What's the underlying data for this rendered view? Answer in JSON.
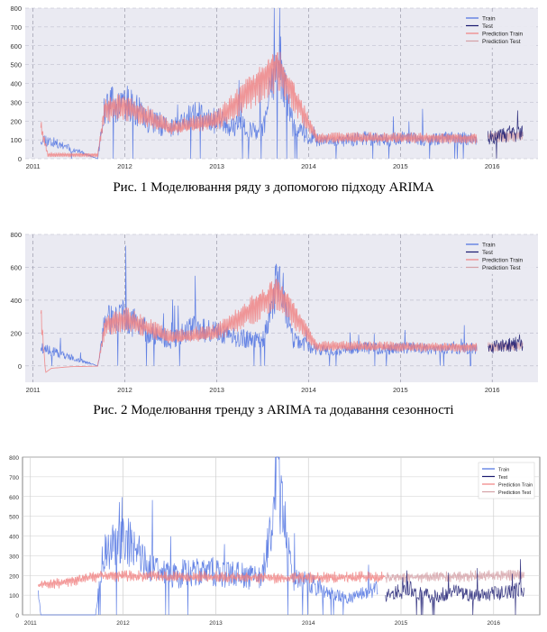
{
  "captions": [
    "Рис. 1 Моделювання ряду з допомогою підходу ARIMA",
    "Рис. 2 Моделювання тренду з ARIMA та додавання сезонності"
  ],
  "colors": {
    "train": "#4a6fe0",
    "test": "#191970",
    "prediction_train": "#f08080",
    "prediction_test": "#d4a0a6",
    "bg_panel_1_2": "#eaeaf2",
    "bg_panel_3": "#ffffff"
  },
  "chart_data": [
    {
      "type": "line",
      "title": "",
      "xlabel": "",
      "ylabel": "",
      "x_ticks": [
        "2011",
        "2012",
        "2013",
        "2014",
        "2015",
        "2016"
      ],
      "y_ticks": [
        0,
        100,
        200,
        300,
        400,
        500,
        600,
        700,
        800
      ],
      "ylim": [
        0,
        800
      ],
      "xlim": [
        "2010-12-01",
        "2016-07-01"
      ],
      "grid": true,
      "legend": "top-right",
      "legend_entries": [
        "Train",
        "Test",
        "Prediction Train",
        "Prediction Test"
      ],
      "series": [
        {
          "name": "Train",
          "x": [
            "2011-02-01",
            "2011-09-15",
            "2011-10-15",
            "2012-01-01",
            "2012-04-01",
            "2012-07-01",
            "2012-10-01",
            "2013-01-01",
            "2013-04-01",
            "2013-07-01",
            "2013-09-01",
            "2013-11-01",
            "2014-02-01",
            "2014-05-01",
            "2014-08-01",
            "2014-11-01",
            "2015-02-01",
            "2015-05-01",
            "2015-08-01",
            "2015-11-01"
          ],
          "values": [
            110,
            0,
            280,
            300,
            210,
            160,
            230,
            200,
            170,
            150,
            560,
            160,
            100,
            90,
            110,
            100,
            110,
            100,
            110,
            105
          ]
        },
        {
          "name": "Test",
          "x": [
            "2015-12-15",
            "2016-02-01",
            "2016-03-15",
            "2016-05-01"
          ],
          "values": [
            110,
            120,
            130,
            135
          ]
        },
        {
          "name": "Prediction Train",
          "x": [
            "2011-02-01",
            "2011-03-01",
            "2011-09-15",
            "2011-10-15",
            "2012-01-01",
            "2012-07-01",
            "2013-01-01",
            "2013-09-01",
            "2014-02-01",
            "2015-01-01",
            "2015-11-01"
          ],
          "values": [
            170,
            20,
            20,
            270,
            280,
            160,
            200,
            500,
            110,
            110,
            110
          ]
        },
        {
          "name": "Prediction Test",
          "x": [
            "2015-12-15",
            "2016-05-01"
          ],
          "values": [
            115,
            125
          ]
        }
      ]
    },
    {
      "type": "line",
      "title": "",
      "xlabel": "",
      "ylabel": "",
      "x_ticks": [
        "2011",
        "2012",
        "2013",
        "2014",
        "2015",
        "2016"
      ],
      "y_ticks": [
        0,
        200,
        400,
        600,
        800
      ],
      "ylim": [
        -100,
        800
      ],
      "xlim": [
        "2010-12-01",
        "2016-07-01"
      ],
      "grid": true,
      "legend": "top-right",
      "legend_entries": [
        "Train",
        "Test",
        "Prediction Train",
        "Prediction Test"
      ],
      "series": [
        {
          "name": "Train",
          "x": [
            "2011-02-01",
            "2011-09-15",
            "2011-10-15",
            "2012-01-01",
            "2012-04-01",
            "2012-07-01",
            "2012-10-01",
            "2013-01-01",
            "2013-04-01",
            "2013-07-01",
            "2013-09-01",
            "2013-11-01",
            "2014-02-01",
            "2014-05-01",
            "2014-08-01",
            "2014-11-01",
            "2015-02-01",
            "2015-05-01",
            "2015-08-01",
            "2015-11-01"
          ],
          "values": [
            110,
            0,
            280,
            300,
            210,
            160,
            230,
            200,
            170,
            150,
            560,
            160,
            100,
            90,
            110,
            100,
            110,
            100,
            110,
            105
          ]
        },
        {
          "name": "Test",
          "x": [
            "2015-12-15",
            "2016-02-01",
            "2016-03-15",
            "2016-05-01"
          ],
          "values": [
            110,
            120,
            130,
            135
          ]
        },
        {
          "name": "Prediction Train",
          "x": [
            "2011-02-01",
            "2011-02-20",
            "2011-03-15",
            "2011-06-01",
            "2011-09-15",
            "2011-10-15",
            "2012-01-01",
            "2012-07-01",
            "2013-01-01",
            "2013-09-01",
            "2014-02-01",
            "2015-01-01",
            "2015-11-01"
          ],
          "values": [
            320,
            -40,
            -15,
            -5,
            -2,
            250,
            290,
            170,
            200,
            460,
            120,
            115,
            115
          ]
        },
        {
          "name": "Prediction Test",
          "x": [
            "2015-12-15",
            "2016-05-01"
          ],
          "values": [
            115,
            125
          ]
        }
      ]
    },
    {
      "type": "line",
      "title": "",
      "xlabel": "",
      "ylabel": "",
      "x_ticks": [
        "2011",
        "2012",
        "2013",
        "2014",
        "2015",
        "2016"
      ],
      "y_ticks": [
        0,
        100,
        200,
        300,
        400,
        500,
        600,
        700,
        800
      ],
      "ylim": [
        0,
        800
      ],
      "xlim": [
        "2010-12-01",
        "2016-07-01"
      ],
      "grid": true,
      "legend": "top-right",
      "legend_entries": [
        "Train",
        "Test",
        "Prediction Train",
        "Prediction Test"
      ],
      "series": [
        {
          "name": "Train",
          "x": [
            "2011-02-01",
            "2011-02-10",
            "2011-09-15",
            "2011-10-15",
            "2012-01-01",
            "2012-04-01",
            "2012-07-01",
            "2013-01-01",
            "2013-07-01",
            "2013-09-01",
            "2013-11-01",
            "2014-02-01",
            "2014-06-01",
            "2014-10-01"
          ],
          "values": [
            150,
            0,
            0,
            300,
            400,
            260,
            200,
            220,
            180,
            700,
            180,
            150,
            80,
            130
          ]
        },
        {
          "name": "Test",
          "x": [
            "2014-11-01",
            "2015-02-01",
            "2015-05-01",
            "2015-08-01",
            "2015-11-01",
            "2016-02-01",
            "2016-05-01"
          ],
          "values": [
            100,
            130,
            90,
            120,
            100,
            110,
            140
          ]
        },
        {
          "name": "Prediction Train",
          "x": [
            "2011-02-01",
            "2011-06-01",
            "2011-10-01",
            "2012-06-01",
            "2013-06-01",
            "2014-06-01",
            "2014-11-01"
          ],
          "values": [
            150,
            170,
            200,
            195,
            190,
            190,
            190
          ]
        },
        {
          "name": "Prediction Test",
          "x": [
            "2014-11-01",
            "2015-06-01",
            "2016-05-01"
          ],
          "values": [
            190,
            195,
            200
          ]
        }
      ]
    }
  ]
}
